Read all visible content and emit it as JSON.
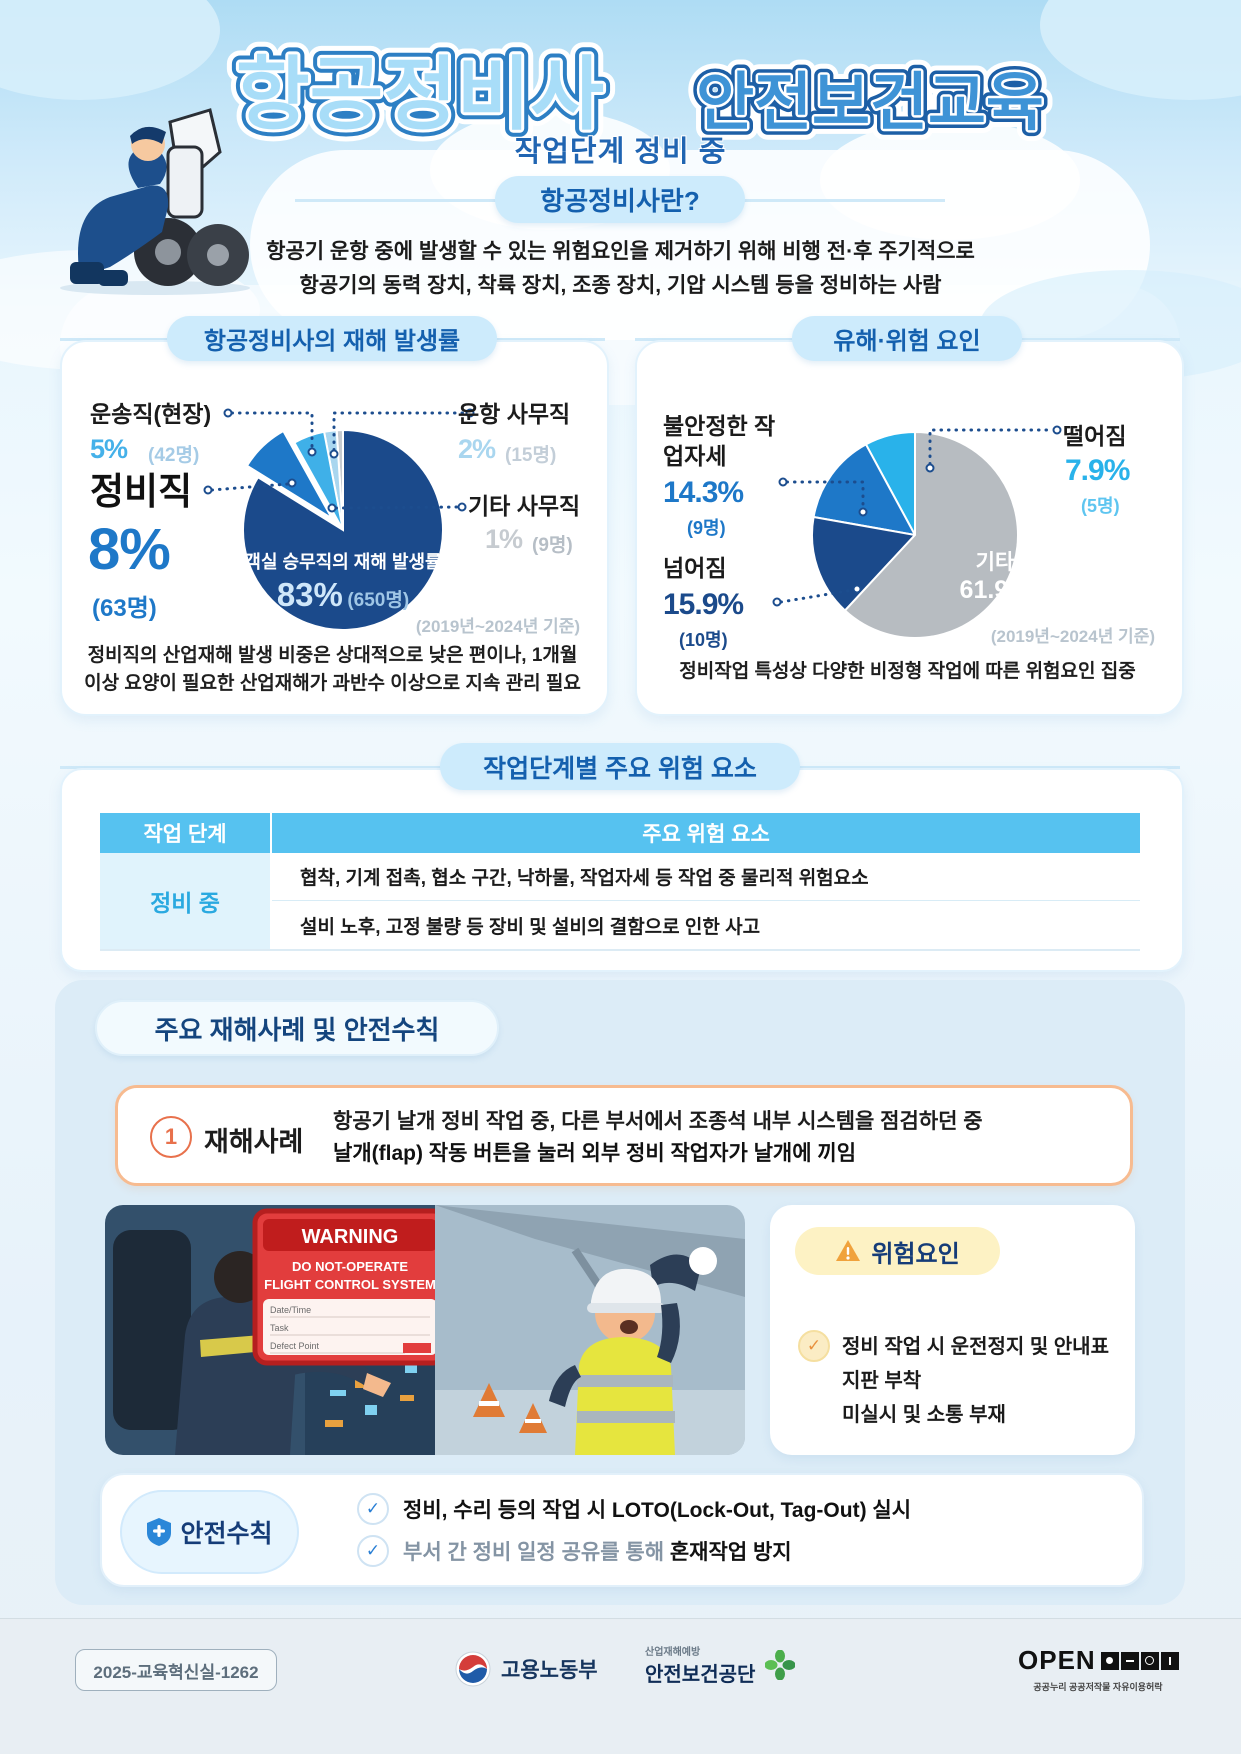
{
  "header": {
    "title_part1": "항공정비사",
    "title_part2": "안전보건교육",
    "subtitle": "작업단계 정비 중",
    "intro_badge": "항공정비사란?",
    "intro_line1": "항공기 운항 중에 발생할 수 있는 위험요인을 제거하기 위해 비행 전·후 주기적으로",
    "intro_line2": "항공기의 동력 장치, 착륙 장치, 조종 장치, 기압 시스템 등을 정비하는 사람"
  },
  "chart_data": [
    {
      "type": "pie",
      "title": "항공정비사의 재해 발생률",
      "period": "(2019년~2024년 기준)",
      "note_line1": "정비직의 산업재해 발생 비중은 상대적으로 낮은 편이나, 1개월",
      "note_line2": "이상 요양이 필요한 산업재해가 과반수 이상으로 지속 관리 필요",
      "legend_position": "callout-labels",
      "slices": [
        {
          "label": "객실 승무직의 재해 발생률",
          "pct": 83,
          "pct_text": "83%",
          "count_text": "(650명)",
          "color": "#1b4a8b"
        },
        {
          "label": "정비직",
          "pct": 8,
          "pct_text": "8%",
          "count_text": "(63명)",
          "color": "#1e78c8",
          "explode": true
        },
        {
          "label": "운송직(현장)",
          "pct": 5,
          "pct_text": "5%",
          "count_text": "(42명)",
          "color": "#3fb0e8"
        },
        {
          "label": "운항 사무직",
          "pct": 2,
          "pct_text": "2%",
          "count_text": "(15명)",
          "color": "#a9d6ef"
        },
        {
          "label": "기타 사무직",
          "pct": 1,
          "pct_text": "1%",
          "count_text": "(9명)",
          "color": "#c6cbd0"
        }
      ]
    },
    {
      "type": "pie",
      "title": "유해·위험 요인",
      "period": "(2019년~2024년 기준)",
      "note": "정비작업 특성상 다양한 비정형 작업에 따른 위험요인 집중",
      "slices": [
        {
          "label": "기타",
          "pct": 61.9,
          "pct_text": "61.9%",
          "color": "#b7bcc1"
        },
        {
          "label": "넘어짐",
          "pct": 15.9,
          "pct_text": "15.9%",
          "count_text": "(10명)",
          "color": "#1b4a8b"
        },
        {
          "label": "불안정한 작업자세",
          "pct": 14.3,
          "pct_text": "14.3%",
          "count_text": "(9명)",
          "color": "#1e78c8"
        },
        {
          "label": "떨어짐",
          "pct": 7.9,
          "pct_text": "7.9%",
          "count_text": "(5명)",
          "color": "#29b2ea"
        }
      ]
    }
  ],
  "risk_table": {
    "title": "작업단계별 주요 위험 요소",
    "col1": "작업 단계",
    "col2": "주요 위험 요소",
    "stage": "정비 중",
    "risk1": "협착, 기계 접촉, 협소 구간, 낙하물, 작업자세 등 작업 중 물리적 위험요소",
    "risk2": "설비 노후, 고정 불량 등 장비 및 설비의 결함으로 인한 사고"
  },
  "case_section": {
    "title": "주요 재해사례 및 안전수칙",
    "case_number": "1",
    "case_label": "재해사례",
    "case_line1": "항공기 날개 정비 작업 중, 다른 부서에서 조종석 내부 시스템을 점검하던 중",
    "case_line2": "날개(flap) 작동 버튼을 눌러 외부 정비 작업자가 날개에 끼임",
    "warning_sign": {
      "title": "WARNING",
      "line1": "DO NOT-OPERATE",
      "line2": "FLIGHT CONTROL SYSTEM",
      "field1": "Date/Time",
      "field2": "Task",
      "field3": "Defect Point"
    },
    "risk_box_title": "위험요인",
    "risk_item_line1": "정비 작업 시 운전정지 및 안내표지판 부착",
    "risk_item_line2": "미실시 및 소통 부재",
    "rules_title": "안전수칙",
    "rule1": "정비, 수리 등의 작업 시 LOTO(Lock-Out, Tag-Out) 실시",
    "rule2_prefix": "부서 간 정비 일정 공유를 통해 ",
    "rule2_bold": "혼재작업 방지"
  },
  "footer": {
    "doc_number": "2025-교육혁신실-1262",
    "ministry": "고용노동부",
    "kosha_tagline": "산업재해예방",
    "kosha": "안전보건공단",
    "open_label": "OPEN",
    "open_caption": "공공누리 공공저작물 자유이용허락"
  },
  "colors": {
    "accent_blue": "#1460ae",
    "pill_bg": "#cdebfc",
    "table_header_bg": "#56c2f0",
    "stage_text": "#2aa9e0",
    "case_border": "#f4a470",
    "warn_yellow_bg": "#fdf2c4"
  }
}
